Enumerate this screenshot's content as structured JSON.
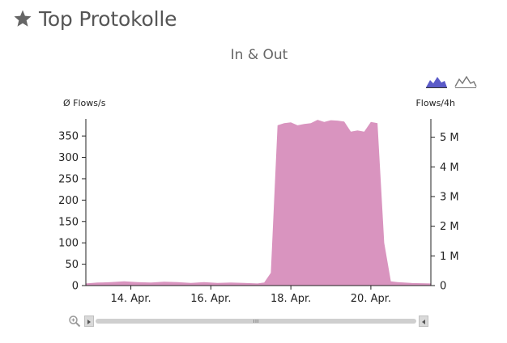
{
  "header": {
    "title": "Top Protokolle",
    "icon": "star-icon"
  },
  "chart_data": {
    "type": "area",
    "title": "In & Out",
    "ylabel_left": "Ø Flows/s",
    "ylabel_right": "Flows/4h",
    "x_tick_labels": [
      "14. Apr.",
      "16. Apr.",
      "18. Apr.",
      "20. Apr."
    ],
    "y_left_ticks": [
      0,
      50,
      100,
      150,
      200,
      250,
      300,
      350
    ],
    "y_left_tick_labels": [
      "0",
      "50",
      "100",
      "150",
      "200",
      "250",
      "300",
      "350"
    ],
    "y_right_ticks": [
      0,
      1,
      2,
      3,
      4,
      5
    ],
    "y_right_tick_labels": [
      "0",
      "1 M",
      "2 M",
      "3 M",
      "4 M",
      "5 M"
    ],
    "ylim_left": [
      0,
      390
    ],
    "xlim": [
      "2013-04-12T21:00",
      "2013-04-21T12:00"
    ],
    "x_ticks": [
      "2013-04-14T00:00",
      "2013-04-16T00:00",
      "2013-04-18T00:00",
      "2013-04-20T00:00"
    ],
    "color": "#d994bf",
    "grid": false,
    "legend": "none",
    "series": [
      {
        "x": [
          "2013-04-12T21:00",
          "2013-04-13T04:00",
          "2013-04-13T12:00",
          "2013-04-13T20:00",
          "2013-04-14T04:00",
          "2013-04-14T12:00",
          "2013-04-14T20:00",
          "2013-04-15T04:00",
          "2013-04-15T12:00",
          "2013-04-15T20:00",
          "2013-04-16T04:00",
          "2013-04-16T12:00",
          "2013-04-16T20:00",
          "2013-04-17T04:00",
          "2013-04-17T08:00",
          "2013-04-17T12:00",
          "2013-04-17T16:00",
          "2013-04-17T20:00",
          "2013-04-18T00:00",
          "2013-04-18T04:00",
          "2013-04-18T08:00",
          "2013-04-18T12:00",
          "2013-04-18T16:00",
          "2013-04-18T20:00",
          "2013-04-19T00:00",
          "2013-04-19T04:00",
          "2013-04-19T08:00",
          "2013-04-19T12:00",
          "2013-04-19T16:00",
          "2013-04-19T20:00",
          "2013-04-20T00:00",
          "2013-04-20T04:00",
          "2013-04-20T08:00",
          "2013-04-20T12:00",
          "2013-04-20T16:00",
          "2013-04-20T20:00",
          "2013-04-21T00:00",
          "2013-04-21T12:00"
        ],
        "values": [
          5,
          7,
          8,
          10,
          8,
          7,
          9,
          8,
          6,
          8,
          6,
          7,
          6,
          5,
          7,
          30,
          375,
          380,
          382,
          375,
          378,
          380,
          388,
          383,
          387,
          386,
          384,
          360,
          363,
          360,
          383,
          380,
          100,
          10,
          8,
          7,
          6,
          5
        ]
      }
    ]
  },
  "navigator": {
    "zoom_icon": "zoom-icon"
  }
}
